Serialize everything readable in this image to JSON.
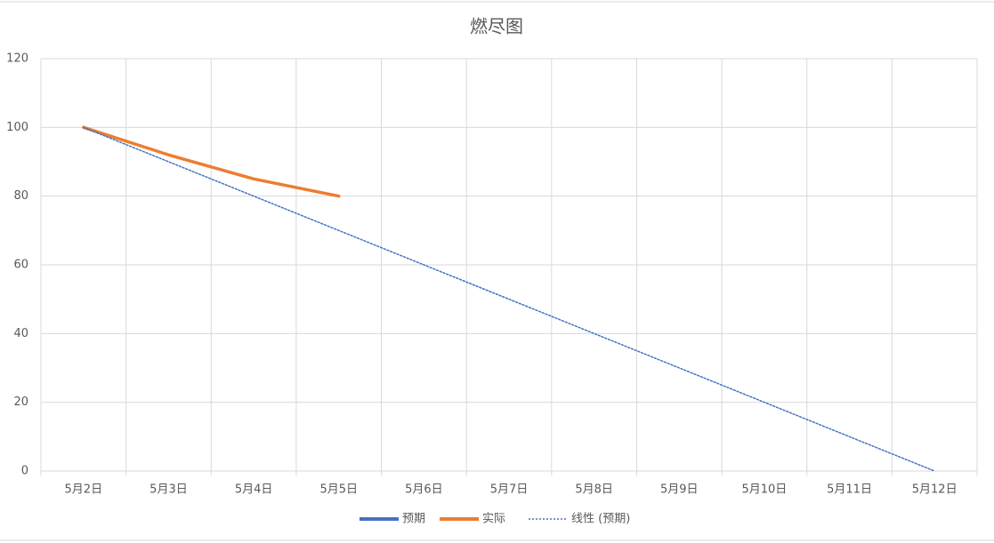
{
  "chart_data": {
    "type": "line",
    "title": "燃尽图",
    "categories": [
      "5月2日",
      "5月3日",
      "5月4日",
      "5月5日",
      "5月6日",
      "5月7日",
      "5月8日",
      "5月9日",
      "5月10日",
      "5月11日",
      "5月12日"
    ],
    "series": [
      {
        "name": "预期",
        "color": "#4472c4",
        "values": [
          100,
          null,
          null,
          null,
          null,
          null,
          null,
          null,
          null,
          null,
          0
        ]
      },
      {
        "name": "实际",
        "color": "#ed7d31",
        "values": [
          100,
          92,
          85,
          80,
          null,
          null,
          null,
          null,
          null,
          null,
          null
        ]
      },
      {
        "name": "线性 (预期)",
        "color": "#4472c4",
        "dash": "dotted",
        "values": [
          100,
          90,
          80,
          70,
          60,
          50,
          40,
          30,
          20,
          10,
          0
        ]
      }
    ],
    "ylim": [
      0,
      120
    ],
    "yticks": [
      0,
      20,
      40,
      60,
      80,
      100,
      120
    ],
    "grid": true,
    "legend": "bottom"
  }
}
